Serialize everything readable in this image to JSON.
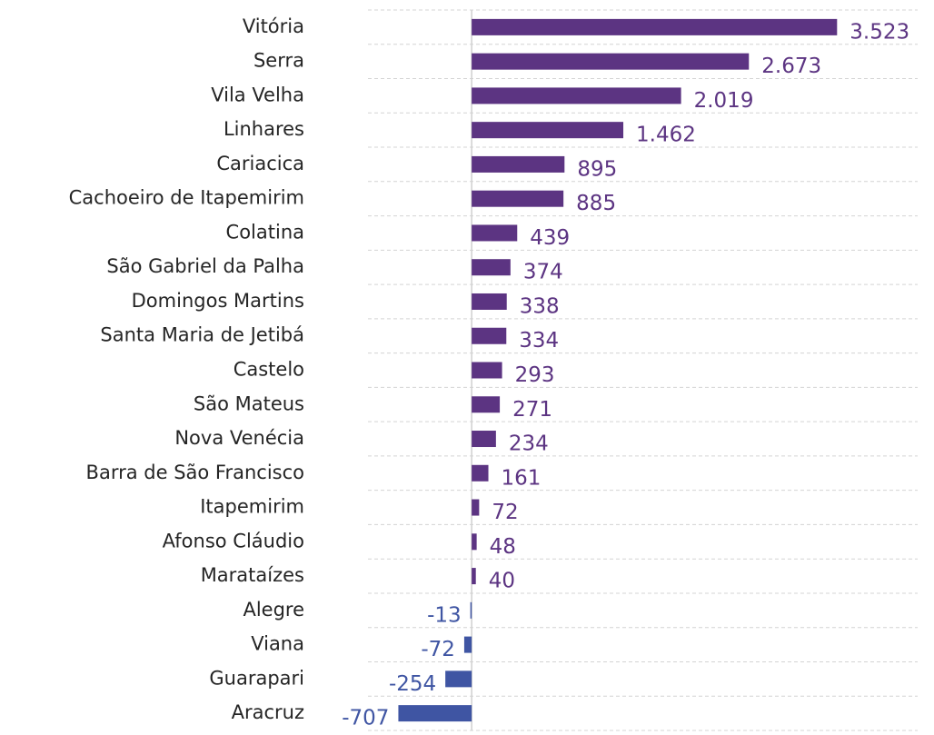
{
  "chart_data": {
    "type": "barh",
    "categories": [
      "Vitória",
      "Serra",
      "Vila Velha",
      "Linhares",
      "Cariacica",
      "Cachoeiro de Itapemirim",
      "Colatina",
      "São Gabriel da Palha",
      "Domingos Martins",
      "Santa Maria de Jetibá",
      "Castelo",
      "São Mateus",
      "Nova Venécia",
      "Barra de São Francisco",
      "Itapemirim",
      "Afonso Cláudio",
      "Marataízes",
      "Alegre",
      "Viana",
      "Guarapari",
      "Aracruz"
    ],
    "values": [
      3523,
      2673,
      2019,
      1462,
      895,
      885,
      439,
      374,
      338,
      334,
      293,
      271,
      234,
      161,
      72,
      48,
      40,
      -13,
      -72,
      -254,
      -707
    ],
    "value_labels": [
      "3.523",
      "2.673",
      "2.019",
      "1.462",
      "895",
      "885",
      "439",
      "374",
      "338",
      "334",
      "293",
      "271",
      "234",
      "161",
      "72",
      "48",
      "40",
      "-13",
      "-72",
      "-254",
      "-707"
    ],
    "color": "#5c3482",
    "negative_color": "#3f55a3",
    "xlim": [
      -1000,
      4300
    ]
  }
}
